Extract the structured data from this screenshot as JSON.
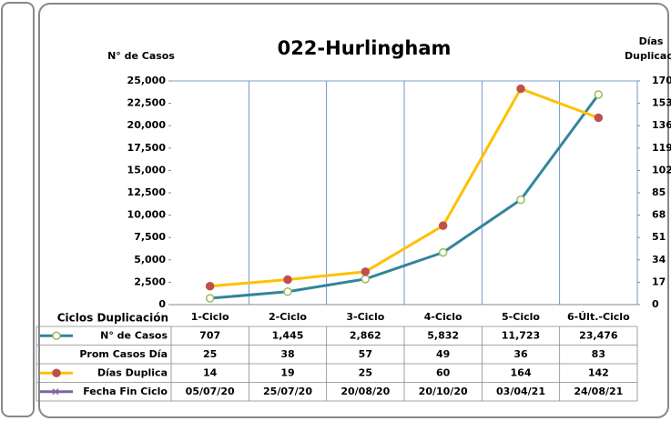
{
  "chart_data": {
    "type": "line",
    "title": "022-Hurlingham",
    "ylabel": "N° de Casos",
    "y2label": [
      "Días",
      "Duplicación"
    ],
    "table_header": "Ciclos Duplicación",
    "categories": [
      "1-Ciclo",
      "2-Ciclo",
      "3-Ciclo",
      "4-Ciclo",
      "5-Ciclo",
      "6-Últ.-Ciclo"
    ],
    "series": [
      {
        "name": "N° de Casos",
        "color": "#31859c",
        "marker_color": "#9bbb59",
        "marker_fill": "#ffffff",
        "values": [
          707,
          1445,
          2862,
          5832,
          11723,
          23476
        ],
        "value_labels": [
          "707",
          "1,445",
          "2,862",
          "5,832",
          "11,723",
          "23,476"
        ]
      },
      {
        "name": "Prom Casos Día",
        "values": [
          25,
          38,
          57,
          49,
          36,
          83
        ]
      },
      {
        "name": "Días Duplica",
        "color": "#ffc000",
        "marker_color": "#c0504d",
        "marker_fill": "#c0504d",
        "axis": "y2",
        "values": [
          14,
          19,
          25,
          60,
          164,
          142
        ]
      }
    ],
    "date_row": {
      "name": "Fecha Fin Ciclo",
      "color": "#8064a2",
      "labels": [
        "05/07/20",
        "25/07/20",
        "20/08/20",
        "20/10/20",
        "03/04/21",
        "24/08/21"
      ]
    },
    "ylim": [
      0,
      25000
    ],
    "yticks": [
      0,
      {
        "value": 2500,
        "label": "2,500"
      },
      {
        "value": 5000,
        "label": "5,000"
      },
      {
        "value": 7500,
        "label": "7,500"
      },
      {
        "value": 10000,
        "label": "10,000"
      },
      {
        "value": 12500,
        "label": "12,500"
      },
      {
        "value": 15000,
        "label": "15,000"
      },
      {
        "value": 17500,
        "label": "17,500"
      },
      {
        "value": 20000,
        "label": "20,000"
      },
      {
        "value": 22500,
        "label": "22,500"
      },
      {
        "value": 25000,
        "label": "25,000"
      }
    ],
    "y2lim": [
      0,
      170
    ],
    "y2ticks": [
      0,
      17,
      34,
      51,
      68,
      85,
      102,
      119,
      136,
      153,
      170
    ]
  }
}
